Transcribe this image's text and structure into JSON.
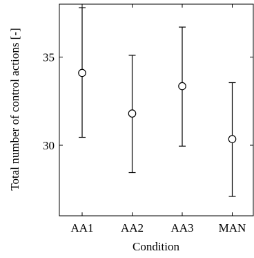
{
  "chart_data": {
    "type": "scatter",
    "categories": [
      "AA1",
      "AA2",
      "AA3",
      "MAN"
    ],
    "means": [
      34.1,
      31.8,
      33.35,
      30.35
    ],
    "lower": [
      30.45,
      28.45,
      29.95,
      27.1
    ],
    "upper": [
      37.8,
      35.1,
      36.7,
      33.55
    ],
    "xlabel": "Condition",
    "ylabel": "Total number of control actions [-]",
    "yticks": [
      30,
      35
    ],
    "ylim": [
      26,
      38
    ],
    "grid": false,
    "error_bars": true
  }
}
